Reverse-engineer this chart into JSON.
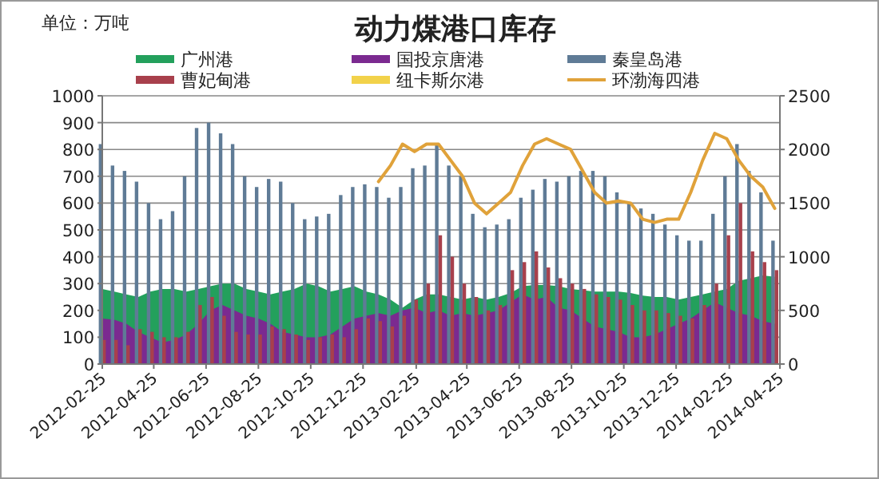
{
  "chart_data": {
    "type": "bar",
    "title": "动力煤港口库存",
    "annotations": [
      "单位：万吨"
    ],
    "x": [
      "2012-02-25",
      "2012-03-10",
      "2012-03-24",
      "2012-04-07",
      "2012-04-21",
      "2012-05-05",
      "2012-05-19",
      "2012-06-02",
      "2012-06-16",
      "2012-06-30",
      "2012-07-14",
      "2012-07-28",
      "2012-08-11",
      "2012-08-25",
      "2012-09-08",
      "2012-09-22",
      "2012-10-06",
      "2012-10-20",
      "2012-11-03",
      "2012-11-17",
      "2012-12-01",
      "2012-12-15",
      "2012-12-29",
      "2013-01-12",
      "2013-01-26",
      "2013-02-09",
      "2013-02-23",
      "2013-03-09",
      "2013-03-23",
      "2013-04-06",
      "2013-04-20",
      "2013-05-04",
      "2013-05-18",
      "2013-06-01",
      "2013-06-15",
      "2013-06-29",
      "2013-07-13",
      "2013-07-27",
      "2013-08-10",
      "2013-08-24",
      "2013-09-07",
      "2013-09-21",
      "2013-10-05",
      "2013-10-19",
      "2013-11-02",
      "2013-11-16",
      "2013-11-30",
      "2013-12-14",
      "2013-12-28",
      "2014-01-11",
      "2014-01-25",
      "2014-02-08",
      "2014-02-22",
      "2014-03-08",
      "2014-03-22",
      "2014-04-05",
      "2014-04-19"
    ],
    "series": [
      {
        "name": "广州港",
        "type": "area",
        "color": "#23a05c",
        "values": [
          280,
          270,
          260,
          250,
          270,
          280,
          280,
          270,
          280,
          290,
          300,
          300,
          280,
          270,
          260,
          270,
          280,
          300,
          290,
          270,
          280,
          290,
          270,
          260,
          240,
          210,
          240,
          260,
          260,
          250,
          240,
          250,
          240,
          250,
          265,
          290,
          295,
          295,
          290,
          280,
          275,
          270,
          270,
          270,
          265,
          255,
          250,
          250,
          240,
          250,
          260,
          270,
          280,
          310,
          320,
          330,
          325
        ]
      },
      {
        "name": "国投京唐港",
        "type": "area",
        "color": "#7b2a90",
        "values": [
          170,
          165,
          150,
          120,
          100,
          80,
          90,
          110,
          150,
          200,
          220,
          200,
          180,
          170,
          150,
          120,
          110,
          100,
          100,
          110,
          140,
          170,
          180,
          190,
          180,
          200,
          210,
          190,
          200,
          180,
          190,
          180,
          190,
          200,
          230,
          260,
          240,
          250,
          210,
          200,
          170,
          140,
          130,
          120,
          100,
          100,
          110,
          130,
          150,
          170,
          200,
          230,
          210,
          190,
          180,
          160,
          150
        ]
      },
      {
        "name": "秦皇岛港",
        "color": "#5f7b96",
        "values": [
          820,
          740,
          720,
          680,
          600,
          540,
          570,
          700,
          880,
          900,
          860,
          820,
          700,
          660,
          690,
          680,
          600,
          540,
          550,
          560,
          630,
          660,
          670,
          660,
          620,
          660,
          730,
          740,
          820,
          740,
          700,
          560,
          510,
          520,
          540,
          620,
          650,
          690,
          680,
          700,
          720,
          720,
          700,
          640,
          600,
          580,
          560,
          520,
          480,
          460,
          460,
          560,
          700,
          820,
          720,
          640,
          460
        ]
      },
      {
        "name": "曹妃甸港",
        "color": "#a8404c",
        "values": [
          90,
          90,
          70,
          130,
          120,
          100,
          100,
          120,
          220,
          250,
          180,
          120,
          110,
          110,
          140,
          130,
          110,
          90,
          100,
          110,
          100,
          130,
          170,
          160,
          140,
          180,
          240,
          300,
          480,
          400,
          300,
          250,
          200,
          220,
          350,
          380,
          420,
          360,
          320,
          300,
          280,
          260,
          250,
          240,
          220,
          200,
          200,
          190,
          180,
          170,
          220,
          300,
          480,
          600,
          420,
          380,
          350
        ]
      },
      {
        "name": "纽卡斯尔港",
        "type": "area",
        "color": "#f2d24a",
        "values": [
          null,
          null,
          null,
          null,
          null,
          null,
          null,
          null,
          null,
          null,
          null,
          null,
          null,
          null,
          null,
          null,
          null,
          null,
          null,
          null,
          null,
          null,
          null,
          null,
          null,
          null,
          null,
          null,
          null,
          null,
          null,
          null,
          null,
          null,
          null,
          null,
          null,
          null,
          null,
          null,
          null,
          null,
          null,
          null,
          null,
          null,
          null,
          null,
          null,
          null,
          null,
          null,
          null,
          null,
          null,
          null,
          null
        ]
      },
      {
        "name": "环渤海四港",
        "type": "line",
        "axis": "y2",
        "color": "#e0a23a",
        "values": [
          null,
          null,
          null,
          null,
          null,
          null,
          null,
          null,
          null,
          null,
          null,
          null,
          null,
          null,
          null,
          null,
          null,
          null,
          null,
          null,
          null,
          null,
          null,
          1700,
          1850,
          2050,
          1980,
          2050,
          2050,
          1900,
          1750,
          1500,
          1400,
          1500,
          1600,
          1850,
          2050,
          2100,
          2050,
          2000,
          1800,
          1600,
          1500,
          1520,
          1500,
          1350,
          1320,
          1350,
          1350,
          1600,
          1900,
          2150,
          2100,
          1900,
          1750,
          1650,
          1450
        ]
      }
    ],
    "xlim": [
      "2012-02-25",
      "2014-04-25"
    ],
    "xticks": [
      "2012-02-25",
      "2012-04-25",
      "2012-06-25",
      "2012-08-25",
      "2012-10-25",
      "2012-12-25",
      "2013-02-25",
      "2013-04-25",
      "2013-06-25",
      "2013-08-25",
      "2013-10-25",
      "2013-12-25",
      "2014-02-25",
      "2014-04-25"
    ],
    "ylim": [
      0,
      1000
    ],
    "yticks": [
      0,
      100,
      200,
      300,
      400,
      500,
      600,
      700,
      800,
      900,
      1000
    ],
    "y2lim": [
      0,
      2500
    ],
    "y2ticks": [
      0,
      500,
      1000,
      1500,
      2000,
      2500
    ],
    "grid": "y",
    "legend": "top"
  }
}
